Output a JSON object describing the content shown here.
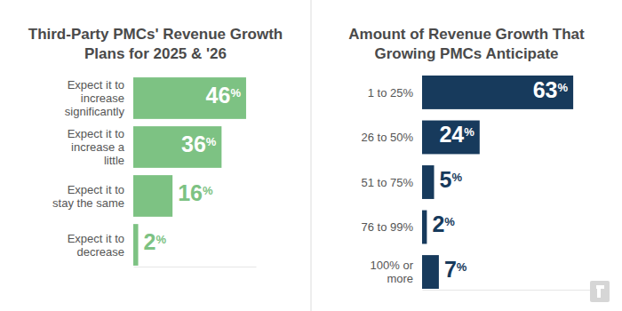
{
  "chart_data": [
    {
      "type": "bar",
      "orientation": "horizontal",
      "title": "Third-Party PMCs' Revenue Growth Plans for 2025 & '26",
      "categories": [
        "Expect it to increase significantly",
        "Expect it to increase a little",
        "Expect it to stay the same",
        "Expect it to decrease"
      ],
      "values": [
        46,
        36,
        16,
        2
      ],
      "value_labels": [
        "46%",
        "36%",
        "16%",
        "2%"
      ],
      "color": "#7dc283",
      "xlim": [
        0,
        50
      ],
      "data_labels": true,
      "tick_labels": "y"
    },
    {
      "type": "bar",
      "orientation": "horizontal",
      "title": "Amount of Revenue Growth That Growing PMCs Anticipate",
      "categories": [
        "1 to 25%",
        "26 to 50%",
        "51 to 75%",
        "76 to 99%",
        "100% or more"
      ],
      "values": [
        63,
        24,
        5,
        2,
        7
      ],
      "value_labels": [
        "63%",
        "24%",
        "5%",
        "2%",
        "7%"
      ],
      "color": "#173a5c",
      "xlim": [
        0,
        70
      ],
      "data_labels": true,
      "tick_labels": "y"
    }
  ]
}
